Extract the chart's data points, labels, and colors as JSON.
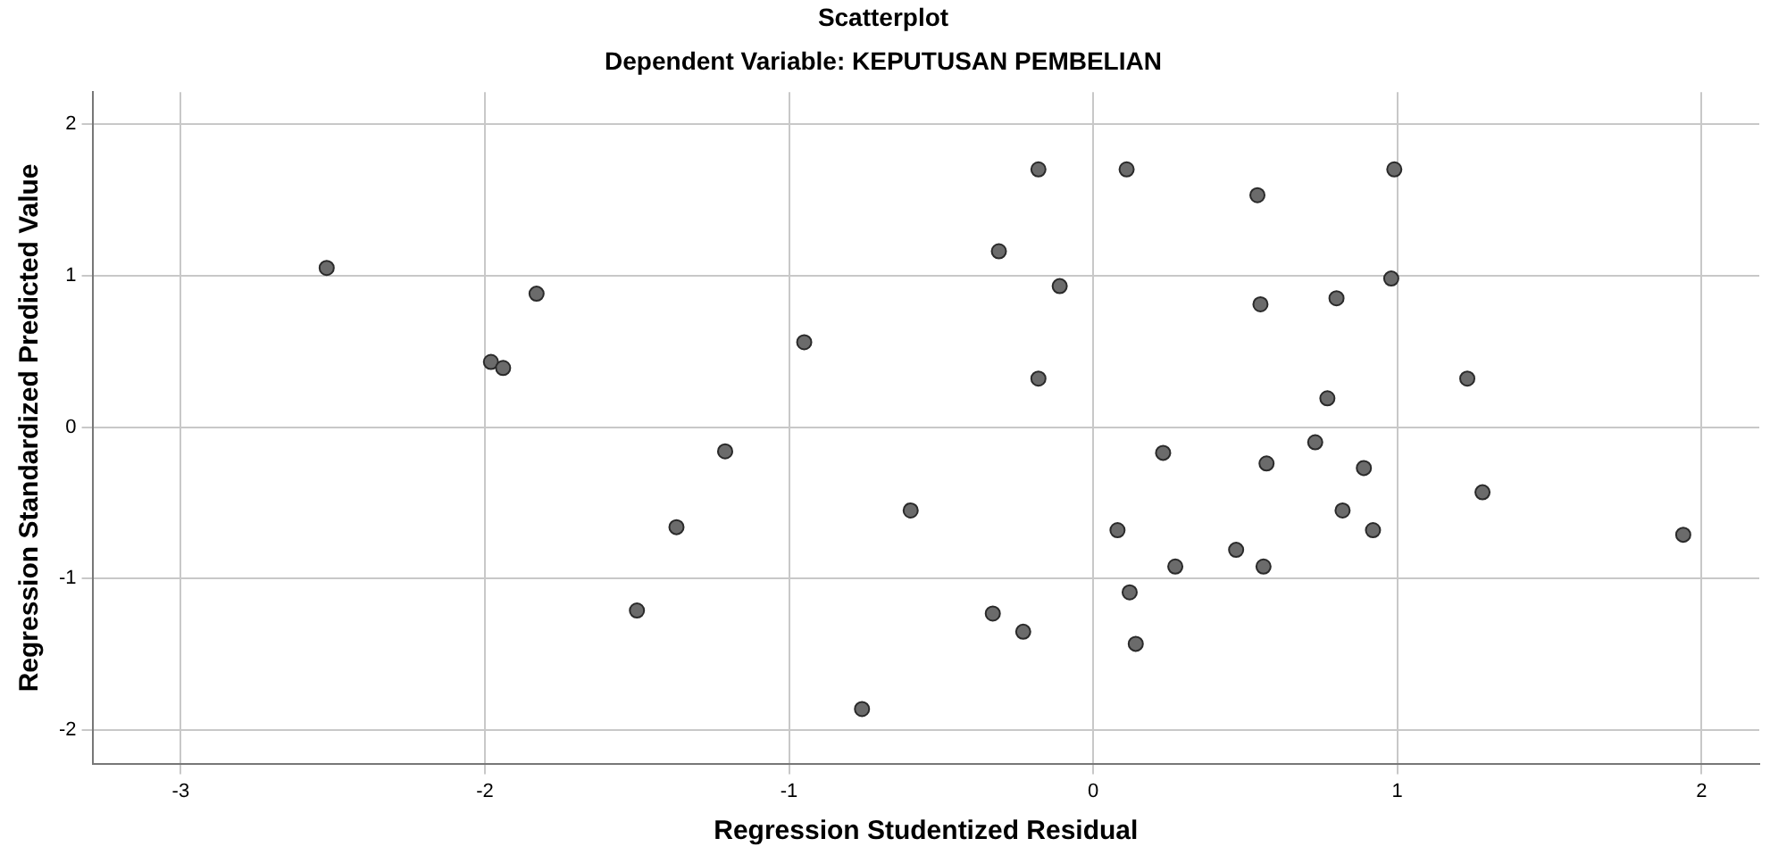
{
  "chart_data": {
    "type": "scatter",
    "title": "Scatterplot",
    "subtitle": "Dependent Variable: KEPUTUSAN PEMBELIAN",
    "xlabel": "Regression Studentized Residual",
    "ylabel": "Regression Standardized Predicted Value",
    "xlim": [
      -3.29,
      2.19
    ],
    "ylim": [
      -2.22,
      2.21
    ],
    "xticks": [
      -3,
      -2,
      -1,
      0,
      1,
      2
    ],
    "yticks": [
      -2,
      -1,
      0,
      1,
      2
    ],
    "grid": true,
    "marker": "circle",
    "series": [
      {
        "color": "#6b6b6b",
        "x": [
          -2.52,
          -1.83,
          -1.98,
          -1.94,
          -1.21,
          -1.37,
          -1.5,
          -0.95,
          -0.6,
          -0.76,
          -0.18,
          0.11,
          -0.31,
          -0.11,
          -0.18,
          -0.33,
          -0.23,
          0.23,
          0.08,
          0.27,
          0.47,
          0.12,
          0.14,
          0.54,
          0.55,
          0.8,
          0.99,
          0.98,
          0.77,
          1.23,
          0.73,
          0.57,
          0.89,
          1.28,
          0.82,
          0.92,
          0.56,
          1.94
        ],
        "values": [
          1.05,
          0.88,
          0.43,
          0.39,
          -0.16,
          -0.66,
          -1.21,
          0.56,
          -0.55,
          -1.86,
          1.7,
          1.7,
          1.16,
          0.93,
          0.32,
          -1.23,
          -1.35,
          -0.17,
          -0.68,
          -0.92,
          -0.81,
          -1.09,
          -1.43,
          1.53,
          0.81,
          0.85,
          1.7,
          0.98,
          0.19,
          0.32,
          -0.1,
          -0.24,
          -0.27,
          -0.43,
          -0.55,
          -0.68,
          -0.92,
          -0.71
        ]
      }
    ]
  }
}
